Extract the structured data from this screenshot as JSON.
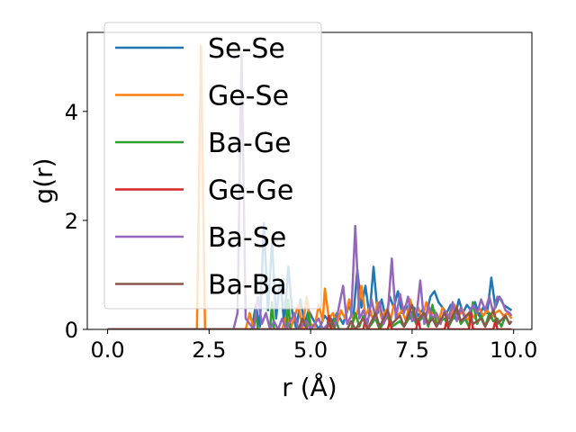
{
  "chart_data": {
    "type": "line",
    "title": "",
    "xlabel": "r (Å)",
    "ylabel": "g(r)",
    "xlim": [
      -0.5,
      10.45
    ],
    "ylim": [
      0,
      5.45
    ],
    "xticks": [
      0.0,
      2.5,
      5.0,
      7.5,
      10.0
    ],
    "xtick_labels": [
      "0.0",
      "2.5",
      "5.0",
      "7.5",
      "10.0"
    ],
    "yticks": [
      0,
      2,
      4
    ],
    "ytick_labels": [
      "0",
      "2",
      "4"
    ],
    "grid": false,
    "legend_position": "top-left",
    "series": [
      {
        "name": "Se-Se",
        "color": "#1f77b4",
        "points": [
          [
            0,
            0
          ],
          [
            3.55,
            0
          ],
          [
            3.65,
            0.45
          ],
          [
            3.75,
            0.05
          ],
          [
            3.85,
            1.95
          ],
          [
            3.95,
            0.35
          ],
          [
            4.05,
            1.6
          ],
          [
            4.15,
            0.2
          ],
          [
            4.25,
            0.9
          ],
          [
            4.35,
            0.1
          ],
          [
            4.45,
            1.15
          ],
          [
            4.55,
            0.3
          ],
          [
            4.65,
            0.0
          ],
          [
            4.75,
            0.55
          ],
          [
            4.85,
            0.1
          ],
          [
            4.95,
            0.35
          ],
          [
            5.05,
            0.2
          ],
          [
            5.2,
            0.0
          ],
          [
            5.35,
            0.25
          ],
          [
            5.5,
            0.1
          ],
          [
            5.65,
            0.3
          ],
          [
            5.8,
            0.1
          ],
          [
            5.95,
            0.45
          ],
          [
            6.05,
            0.2
          ],
          [
            6.15,
            1.1
          ],
          [
            6.25,
            0.4
          ],
          [
            6.35,
            0.8
          ],
          [
            6.45,
            0.25
          ],
          [
            6.55,
            1.15
          ],
          [
            6.65,
            0.3
          ],
          [
            6.75,
            0.55
          ],
          [
            6.85,
            0.2
          ],
          [
            6.95,
            0.6
          ],
          [
            7.05,
            0.4
          ],
          [
            7.15,
            0.7
          ],
          [
            7.25,
            0.3
          ],
          [
            7.35,
            0.45
          ],
          [
            7.45,
            0.2
          ],
          [
            7.55,
            0.4
          ],
          [
            7.65,
            0.25
          ],
          [
            7.75,
            0.35
          ],
          [
            7.85,
            0.25
          ],
          [
            7.95,
            0.6
          ],
          [
            8.05,
            0.7
          ],
          [
            8.15,
            0.5
          ],
          [
            8.25,
            0.4
          ],
          [
            8.35,
            0.3
          ],
          [
            8.45,
            0.45
          ],
          [
            8.55,
            0.2
          ],
          [
            8.65,
            0.55
          ],
          [
            8.75,
            0.3
          ],
          [
            8.85,
            0.45
          ],
          [
            8.95,
            0.35
          ],
          [
            9.05,
            0.5
          ],
          [
            9.15,
            0.25
          ],
          [
            9.25,
            0.4
          ],
          [
            9.35,
            0.3
          ],
          [
            9.45,
            0.95
          ],
          [
            9.55,
            0.4
          ],
          [
            9.65,
            0.6
          ],
          [
            9.75,
            0.45
          ],
          [
            9.85,
            0.4
          ],
          [
            9.95,
            0.35
          ]
        ]
      },
      {
        "name": "Ge-Se",
        "color": "#ff7f0e",
        "points": [
          [
            0,
            0
          ],
          [
            2.2,
            0
          ],
          [
            2.3,
            5.2
          ],
          [
            2.4,
            0
          ],
          [
            3.4,
            0
          ],
          [
            3.5,
            0.3
          ],
          [
            3.6,
            0
          ],
          [
            4.3,
            0
          ],
          [
            4.4,
            0.25
          ],
          [
            4.5,
            0
          ],
          [
            4.7,
            0.45
          ],
          [
            4.8,
            0
          ],
          [
            4.9,
            0.6
          ],
          [
            5.0,
            0.1
          ],
          [
            5.1,
            0.05
          ],
          [
            5.2,
            0.45
          ],
          [
            5.3,
            0.15
          ],
          [
            5.35,
            0.75
          ],
          [
            5.45,
            0.2
          ],
          [
            5.55,
            0.3
          ],
          [
            5.65,
            0.1
          ],
          [
            5.75,
            0.35
          ],
          [
            5.85,
            0.2
          ],
          [
            5.95,
            0.55
          ],
          [
            6.05,
            0.15
          ],
          [
            6.15,
            0.3
          ],
          [
            6.25,
            0.8
          ],
          [
            6.35,
            0.25
          ],
          [
            6.45,
            0.4
          ],
          [
            6.55,
            0.15
          ],
          [
            6.65,
            0.5
          ],
          [
            6.75,
            0.2
          ],
          [
            6.85,
            0.35
          ],
          [
            6.95,
            0.1
          ],
          [
            7.05,
            0.45
          ],
          [
            7.15,
            0.25
          ],
          [
            7.25,
            0.35
          ],
          [
            7.35,
            0.15
          ],
          [
            7.45,
            0.55
          ],
          [
            7.55,
            0.3
          ],
          [
            7.65,
            0.4
          ],
          [
            7.75,
            0.2
          ],
          [
            7.85,
            0.5
          ],
          [
            7.95,
            0.25
          ],
          [
            8.05,
            0.35
          ],
          [
            8.15,
            0.15
          ],
          [
            8.25,
            0.4
          ],
          [
            8.35,
            0.3
          ],
          [
            8.45,
            0.2
          ],
          [
            8.55,
            0.45
          ],
          [
            8.65,
            0.25
          ],
          [
            8.75,
            0.35
          ],
          [
            8.85,
            0.15
          ],
          [
            8.95,
            0.3
          ],
          [
            9.05,
            0.2
          ],
          [
            9.15,
            0.4
          ],
          [
            9.25,
            0.25
          ],
          [
            9.35,
            0.35
          ],
          [
            9.45,
            0.2
          ],
          [
            9.55,
            0.3
          ],
          [
            9.65,
            0.35
          ],
          [
            9.75,
            0.25
          ],
          [
            9.85,
            0.3
          ],
          [
            9.95,
            0.2
          ]
        ]
      },
      {
        "name": "Ba-Ge",
        "color": "#2ca02c",
        "points": [
          [
            0,
            0
          ],
          [
            3.6,
            0
          ],
          [
            3.65,
            0.35
          ],
          [
            3.7,
            0
          ],
          [
            4.0,
            0
          ],
          [
            4.05,
            0.5
          ],
          [
            4.1,
            0
          ],
          [
            4.4,
            0
          ],
          [
            4.45,
            0.55
          ],
          [
            4.5,
            0
          ],
          [
            4.9,
            0
          ],
          [
            4.95,
            0.3
          ],
          [
            5.0,
            0
          ],
          [
            5.5,
            0
          ],
          [
            5.6,
            0.2
          ],
          [
            5.7,
            0
          ],
          [
            6.0,
            0
          ],
          [
            6.1,
            0.3
          ],
          [
            6.2,
            0.05
          ],
          [
            6.3,
            0.25
          ],
          [
            6.4,
            0
          ],
          [
            6.6,
            0.2
          ],
          [
            6.7,
            0
          ],
          [
            6.9,
            0.25
          ],
          [
            7.0,
            0.05
          ],
          [
            7.2,
            0.15
          ],
          [
            7.3,
            0.05
          ],
          [
            7.5,
            0.3
          ],
          [
            7.6,
            0.1
          ],
          [
            7.8,
            0.25
          ],
          [
            7.9,
            0.05
          ],
          [
            8.0,
            0.45
          ],
          [
            8.1,
            0.1
          ],
          [
            8.3,
            0.2
          ],
          [
            8.4,
            0.05
          ],
          [
            8.6,
            0.35
          ],
          [
            8.7,
            0.1
          ],
          [
            8.8,
            0.2
          ],
          [
            8.9,
            0.05
          ],
          [
            9.0,
            0.5
          ],
          [
            9.1,
            0.1
          ],
          [
            9.2,
            0.25
          ],
          [
            9.3,
            0.05
          ],
          [
            9.4,
            0.3
          ],
          [
            9.5,
            0.15
          ],
          [
            9.6,
            0.2
          ],
          [
            9.7,
            0.05
          ],
          [
            9.8,
            0.25
          ],
          [
            9.9,
            0.1
          ],
          [
            9.95,
            0.15
          ]
        ]
      },
      {
        "name": "Ge-Ge",
        "color": "#d62728",
        "points": [
          [
            0,
            0
          ],
          [
            5.4,
            0
          ],
          [
            5.45,
            0.25
          ],
          [
            5.5,
            0
          ],
          [
            6.3,
            0
          ],
          [
            6.35,
            0.2
          ],
          [
            6.4,
            0
          ],
          [
            6.9,
            0
          ],
          [
            6.95,
            0.15
          ],
          [
            7.0,
            0
          ],
          [
            7.6,
            0
          ],
          [
            7.65,
            0.2
          ],
          [
            7.7,
            0
          ],
          [
            8.3,
            0
          ],
          [
            8.35,
            0.15
          ],
          [
            8.4,
            0
          ],
          [
            8.9,
            0
          ],
          [
            8.95,
            0.3
          ],
          [
            9.0,
            0
          ],
          [
            9.5,
            0
          ],
          [
            9.55,
            0.15
          ],
          [
            9.6,
            0
          ],
          [
            9.95,
            0
          ]
        ]
      },
      {
        "name": "Ba-Se",
        "color": "#9467bd",
        "points": [
          [
            0,
            0
          ],
          [
            3.1,
            0
          ],
          [
            3.2,
            0.3
          ],
          [
            3.3,
            5.05
          ],
          [
            3.4,
            0.2
          ],
          [
            3.5,
            0.1
          ],
          [
            3.6,
            0
          ],
          [
            3.7,
            0.6
          ],
          [
            3.8,
            0.1
          ],
          [
            3.9,
            0.3
          ],
          [
            4.0,
            0
          ],
          [
            4.1,
            0.15
          ],
          [
            4.2,
            0
          ],
          [
            4.3,
            0.2
          ],
          [
            4.4,
            0
          ],
          [
            4.6,
            0.3
          ],
          [
            4.7,
            0
          ],
          [
            4.9,
            0.15
          ],
          [
            5.0,
            0
          ],
          [
            5.2,
            0.2
          ],
          [
            5.3,
            0
          ],
          [
            5.5,
            0.15
          ],
          [
            5.6,
            0.05
          ],
          [
            5.8,
            0.8
          ],
          [
            5.9,
            0.1
          ],
          [
            6.0,
            0.25
          ],
          [
            6.1,
            1.9
          ],
          [
            6.2,
            0.2
          ],
          [
            6.3,
            0.35
          ],
          [
            6.4,
            0.1
          ],
          [
            6.5,
            0.55
          ],
          [
            6.6,
            0.2
          ],
          [
            6.7,
            0.5
          ],
          [
            6.8,
            0.1
          ],
          [
            6.9,
            0.3
          ],
          [
            7.0,
            1.3
          ],
          [
            7.1,
            0.2
          ],
          [
            7.2,
            0.65
          ],
          [
            7.3,
            0.3
          ],
          [
            7.4,
            0.6
          ],
          [
            7.5,
            0.15
          ],
          [
            7.6,
            0.2
          ],
          [
            7.7,
            0.9
          ],
          [
            7.8,
            0.1
          ],
          [
            7.9,
            0.45
          ],
          [
            8.0,
            0.2
          ],
          [
            8.1,
            0.3
          ],
          [
            8.2,
            0.1
          ],
          [
            8.3,
            0.35
          ],
          [
            8.4,
            0.2
          ],
          [
            8.5,
            0.5
          ],
          [
            8.6,
            0.15
          ],
          [
            8.7,
            0.4
          ],
          [
            8.8,
            0.2
          ],
          [
            8.9,
            0.3
          ],
          [
            9.0,
            0.45
          ],
          [
            9.1,
            0.3
          ],
          [
            9.2,
            0.55
          ],
          [
            9.3,
            0.35
          ],
          [
            9.4,
            0.6
          ],
          [
            9.5,
            0.3
          ],
          [
            9.6,
            0.6
          ],
          [
            9.7,
            0.55
          ],
          [
            9.8,
            0.35
          ],
          [
            9.9,
            0.3
          ],
          [
            9.95,
            0.25
          ]
        ]
      },
      {
        "name": "Ba-Ba",
        "color": "#8c564b",
        "points": [
          [
            0,
            0
          ],
          [
            4.7,
            0
          ],
          [
            4.8,
            0.2
          ],
          [
            4.9,
            0
          ],
          [
            5.4,
            0
          ],
          [
            5.5,
            0.2
          ],
          [
            5.6,
            0
          ],
          [
            5.9,
            0
          ],
          [
            6.0,
            0.15
          ],
          [
            6.1,
            0
          ],
          [
            6.3,
            0.2
          ],
          [
            6.4,
            0
          ],
          [
            6.6,
            0.3
          ],
          [
            6.7,
            0.05
          ],
          [
            6.9,
            0.35
          ],
          [
            7.0,
            0.1
          ],
          [
            7.2,
            0.25
          ],
          [
            7.3,
            0.05
          ],
          [
            7.5,
            0.45
          ],
          [
            7.6,
            0.15
          ],
          [
            7.8,
            0.3
          ],
          [
            7.9,
            0.1
          ],
          [
            8.0,
            0.2
          ],
          [
            8.1,
            0.05
          ],
          [
            8.3,
            0.3
          ],
          [
            8.4,
            0.1
          ],
          [
            8.6,
            0.4
          ],
          [
            8.7,
            0.15
          ],
          [
            8.9,
            0.3
          ],
          [
            9.0,
            0.1
          ],
          [
            9.2,
            0.2
          ],
          [
            9.3,
            0.05
          ],
          [
            9.5,
            0.35
          ],
          [
            9.6,
            0.1
          ],
          [
            9.8,
            0.25
          ],
          [
            9.9,
            0.1
          ],
          [
            9.95,
            0.15
          ]
        ]
      }
    ]
  }
}
